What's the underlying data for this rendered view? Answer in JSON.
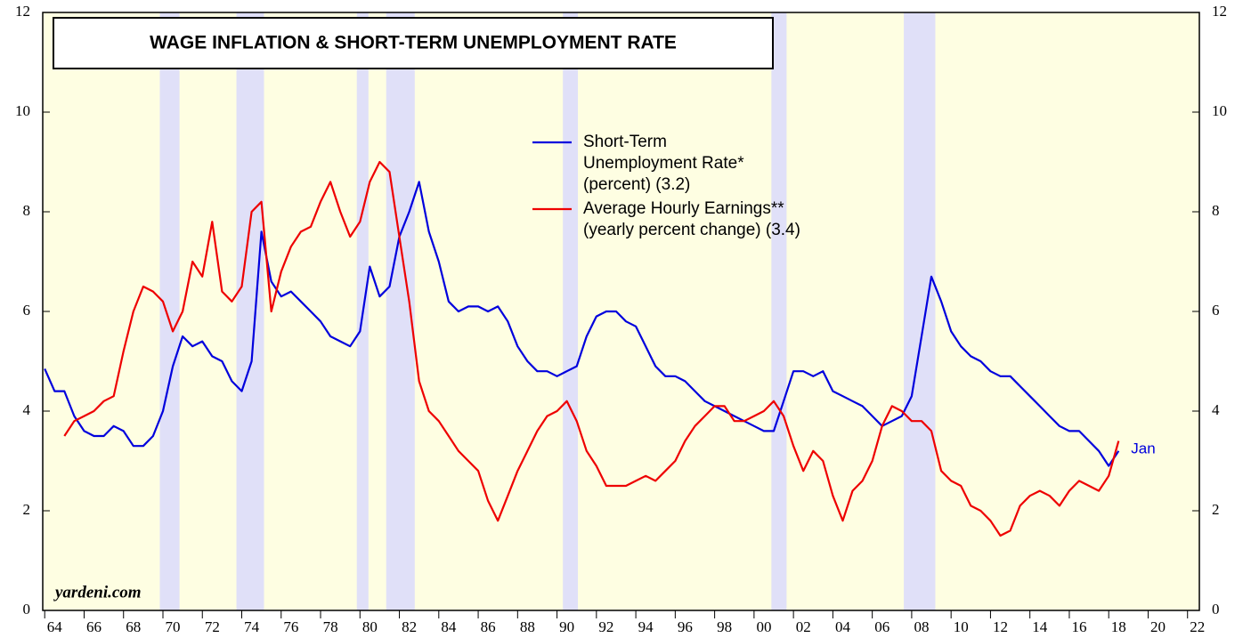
{
  "chart_data": {
    "type": "line",
    "title": "WAGE INFLATION & SHORT-TERM UNEMPLOYMENT RATE",
    "source": "yardeni.com",
    "annotations": [
      "Jan"
    ],
    "xlim": [
      1963.9,
      2022.6
    ],
    "ylim": [
      0,
      12
    ],
    "y2lim": [
      0,
      12
    ],
    "yticks": [
      0,
      2,
      4,
      6,
      8,
      10,
      12
    ],
    "y2ticks": [
      0,
      2,
      4,
      6,
      8,
      10,
      12
    ],
    "xticks": [
      {
        "value": 1964,
        "label": "64"
      },
      {
        "value": 1966,
        "label": "66"
      },
      {
        "value": 1968,
        "label": "68"
      },
      {
        "value": 1970,
        "label": "70"
      },
      {
        "value": 1972,
        "label": "72"
      },
      {
        "value": 1974,
        "label": "74"
      },
      {
        "value": 1976,
        "label": "76"
      },
      {
        "value": 1978,
        "label": "78"
      },
      {
        "value": 1980,
        "label": "80"
      },
      {
        "value": 1982,
        "label": "82"
      },
      {
        "value": 1984,
        "label": "84"
      },
      {
        "value": 1986,
        "label": "86"
      },
      {
        "value": 1988,
        "label": "88"
      },
      {
        "value": 1990,
        "label": "90"
      },
      {
        "value": 1992,
        "label": "92"
      },
      {
        "value": 1994,
        "label": "94"
      },
      {
        "value": 1996,
        "label": "96"
      },
      {
        "value": 1998,
        "label": "98"
      },
      {
        "value": 2000,
        "label": "00"
      },
      {
        "value": 2002,
        "label": "02"
      },
      {
        "value": 2004,
        "label": "04"
      },
      {
        "value": 2006,
        "label": "06"
      },
      {
        "value": 2008,
        "label": "08"
      },
      {
        "value": 2010,
        "label": "10"
      },
      {
        "value": 2012,
        "label": "12"
      },
      {
        "value": 2014,
        "label": "14"
      },
      {
        "value": 2016,
        "label": "16"
      },
      {
        "value": 2018,
        "label": "18"
      },
      {
        "value": 2020,
        "label": "20"
      },
      {
        "value": 2022,
        "label": "22"
      }
    ],
    "recessions": [
      [
        1969.84,
        1970.84
      ],
      [
        1973.73,
        1975.13
      ],
      [
        1979.84,
        1980.43
      ],
      [
        1981.33,
        1982.78
      ],
      [
        1990.3,
        1991.06
      ],
      [
        2000.88,
        2001.65
      ],
      [
        2007.6,
        2009.2
      ]
    ],
    "recession_color": "#e0e0f8",
    "background": "#fefee2",
    "x": [
      1964,
      1964.5,
      1965,
      1965.5,
      1966,
      1966.5,
      1967,
      1967.5,
      1968,
      1968.5,
      1969,
      1969.5,
      1970,
      1970.5,
      1971,
      1971.5,
      1972,
      1972.5,
      1973,
      1973.5,
      1974,
      1974.5,
      1975,
      1975.5,
      1976,
      1976.5,
      1977,
      1977.5,
      1978,
      1978.5,
      1979,
      1979.5,
      1980,
      1980.5,
      1981,
      1981.5,
      1982,
      1982.5,
      1983,
      1983.5,
      1984,
      1984.5,
      1985,
      1985.5,
      1986,
      1986.5,
      1987,
      1987.5,
      1988,
      1988.5,
      1989,
      1989.5,
      1990,
      1990.5,
      1991,
      1991.5,
      1992,
      1992.5,
      1993,
      1993.5,
      1994,
      1994.5,
      1995,
      1995.5,
      1996,
      1996.5,
      1997,
      1997.5,
      1998,
      1998.5,
      1999,
      1999.5,
      2000,
      2000.5,
      2001,
      2001.5,
      2002,
      2002.5,
      2003,
      2003.5,
      2004,
      2004.5,
      2005,
      2005.5,
      2006,
      2006.5,
      2007,
      2007.5,
      2008,
      2008.5,
      2009,
      2009.5,
      2010,
      2010.5,
      2011,
      2011.5,
      2012,
      2012.5,
      2013,
      2013.5,
      2014,
      2014.5,
      2015,
      2015.5,
      2016,
      2016.5,
      2017,
      2017.5,
      2018,
      2018.5
    ],
    "series": [
      {
        "name": [
          "Short-Term",
          "Unemployment Rate*",
          "(percent) (3.2)"
        ],
        "color": "#0000dd",
        "values": [
          4.85,
          4.4,
          4.4,
          3.9,
          3.6,
          3.5,
          3.5,
          3.7,
          3.6,
          3.3,
          3.3,
          3.5,
          4.0,
          4.9,
          5.5,
          5.3,
          5.4,
          5.1,
          5.0,
          4.6,
          4.4,
          5.0,
          7.6,
          6.6,
          6.3,
          6.4,
          6.2,
          6.0,
          5.8,
          5.5,
          5.4,
          5.3,
          5.6,
          6.9,
          6.3,
          6.5,
          7.5,
          8.0,
          8.6,
          7.6,
          7.0,
          6.2,
          6.0,
          6.1,
          6.1,
          6.0,
          6.1,
          5.8,
          5.3,
          5.0,
          4.8,
          4.8,
          4.7,
          4.8,
          4.9,
          5.5,
          5.9,
          6.0,
          6.0,
          5.8,
          5.7,
          5.3,
          4.9,
          4.7,
          4.7,
          4.6,
          4.4,
          4.2,
          4.1,
          4.0,
          3.9,
          3.8,
          3.7,
          3.6,
          3.6,
          4.2,
          4.8,
          4.8,
          4.7,
          4.8,
          4.4,
          4.3,
          4.2,
          4.1,
          3.9,
          3.7,
          3.8,
          3.9,
          4.3,
          5.5,
          6.7,
          6.2,
          5.6,
          5.3,
          5.1,
          5.0,
          4.8,
          4.7,
          4.7,
          4.5,
          4.3,
          4.1,
          3.9,
          3.7,
          3.6,
          3.6,
          3.4,
          3.2,
          2.9,
          3.2
        ]
      },
      {
        "name": [
          "Average Hourly Earnings**",
          "(yearly percent change) (3.4)"
        ],
        "color": "#ee0000",
        "values": [
          null,
          null,
          3.5,
          3.8,
          3.9,
          4.0,
          4.2,
          4.3,
          5.2,
          6.0,
          6.5,
          6.4,
          6.2,
          5.6,
          6.0,
          7.0,
          6.7,
          7.8,
          6.4,
          6.2,
          6.5,
          8.0,
          8.2,
          6.0,
          6.8,
          7.3,
          7.6,
          7.7,
          8.2,
          8.6,
          8.0,
          7.5,
          7.8,
          8.6,
          9.0,
          8.8,
          7.5,
          6.2,
          4.6,
          4.0,
          3.8,
          3.5,
          3.2,
          3.0,
          2.8,
          2.2,
          1.8,
          2.3,
          2.8,
          3.2,
          3.6,
          3.9,
          4.0,
          4.2,
          3.8,
          3.2,
          2.9,
          2.5,
          2.5,
          2.5,
          2.6,
          2.7,
          2.6,
          2.8,
          3.0,
          3.4,
          3.7,
          3.9,
          4.1,
          4.1,
          3.8,
          3.8,
          3.9,
          4.0,
          4.2,
          3.9,
          3.3,
          2.8,
          3.2,
          3.0,
          2.3,
          1.8,
          2.4,
          2.6,
          3.0,
          3.7,
          4.1,
          4.0,
          3.8,
          3.8,
          3.6,
          2.8,
          2.6,
          2.5,
          2.1,
          2.0,
          1.8,
          1.5,
          1.6,
          2.1,
          2.3,
          2.4,
          2.3,
          2.1,
          2.4,
          2.6,
          2.5,
          2.4,
          2.7,
          3.4
        ]
      }
    ]
  }
}
